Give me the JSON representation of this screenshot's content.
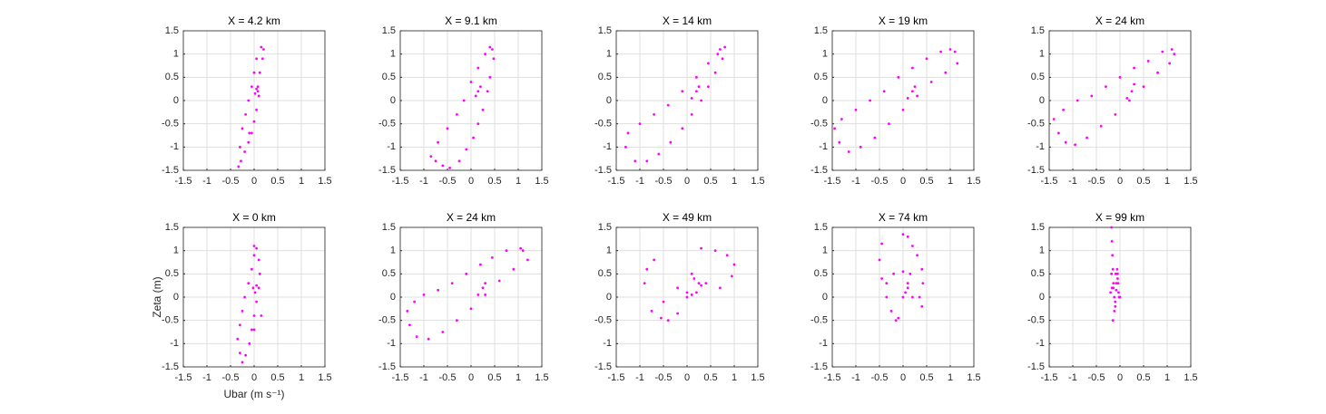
{
  "chart_data": [
    {
      "type": "scatter",
      "title": "X = 4.2 km",
      "color": "#ff00ff",
      "grid": true,
      "xlim": [
        -1.5,
        1.5
      ],
      "ylim": [
        -1.5,
        1.5
      ],
      "xticks": [
        -1.5,
        -1,
        -0.5,
        0,
        0.5,
        1,
        1.5
      ],
      "yticks": [
        -1.5,
        -1,
        -0.5,
        0,
        0.5,
        1,
        1.5
      ],
      "x": [
        0.15,
        0.2,
        0.18,
        0.12,
        0.08,
        0.1,
        0.05,
        0,
        -0.05,
        -0.12,
        -0.2,
        -0.28,
        -0.33,
        -0.3,
        -0.25,
        -0.18,
        -0.12,
        -0.05,
        0,
        0.05,
        0.05,
        0.02,
        0.08,
        -0.1
      ],
      "values": [
        1.15,
        1.1,
        0.9,
        0.6,
        0.3,
        0.1,
        -0.2,
        -0.45,
        -0.7,
        -0.9,
        -1.1,
        -1.3,
        -1.42,
        -1,
        -0.6,
        -0.3,
        0,
        0.3,
        0.6,
        0.9,
        0.25,
        0.15,
        0.2,
        -0.7
      ]
    },
    {
      "type": "scatter",
      "title": "X = 9.1 km",
      "color": "#ff00ff",
      "grid": true,
      "xlim": [
        -1.5,
        1.5
      ],
      "ylim": [
        -1.5,
        1.5
      ],
      "xticks": [
        -1.5,
        -1,
        -0.5,
        0,
        0.5,
        1,
        1.5
      ],
      "yticks": [
        -1.5,
        -1,
        -0.5,
        0,
        0.5,
        1,
        1.5
      ],
      "x": [
        0.4,
        0.45,
        0.48,
        0.4,
        0.35,
        0.25,
        0.15,
        0.05,
        -0.1,
        -0.25,
        -0.45,
        -0.6,
        -0.75,
        -0.85,
        -0.7,
        -0.5,
        -0.3,
        -0.15,
        0,
        0.15,
        0.3,
        0.1,
        0.15,
        0.2
      ],
      "values": [
        1.15,
        1.1,
        0.9,
        0.5,
        0.2,
        -0.2,
        -0.5,
        -0.8,
        -1.05,
        -1.3,
        -1.45,
        -1.4,
        -1.3,
        -1.2,
        -0.9,
        -0.6,
        -0.3,
        0,
        0.4,
        0.7,
        1,
        0.1,
        0.2,
        0.3
      ]
    },
    {
      "type": "scatter",
      "title": "X = 14 km",
      "color": "#ff00ff",
      "grid": true,
      "xlim": [
        -1.5,
        1.5
      ],
      "ylim": [
        -1.5,
        1.5
      ],
      "xticks": [
        -1.5,
        -1,
        -0.5,
        0,
        0.5,
        1,
        1.5
      ],
      "yticks": [
        -1.5,
        -1,
        -0.5,
        0,
        0.5,
        1,
        1.5
      ],
      "x": [
        0.7,
        0.8,
        0.75,
        0.6,
        0.45,
        0.3,
        0.1,
        -0.1,
        -0.35,
        -0.6,
        -0.85,
        -1.1,
        -1.3,
        -1.25,
        -1,
        -0.7,
        -0.4,
        -0.1,
        0.2,
        0.45,
        0.65,
        0.1,
        0.2,
        0.25
      ],
      "values": [
        1.1,
        1.15,
        0.9,
        0.6,
        0.3,
        0,
        -0.3,
        -0.6,
        -0.9,
        -1.15,
        -1.3,
        -1.3,
        -1,
        -0.7,
        -0.5,
        -0.3,
        -0.1,
        0.2,
        0.5,
        0.8,
        1,
        0.05,
        0.2,
        0.3
      ]
    },
    {
      "type": "scatter",
      "title": "X = 19 km",
      "color": "#ff00ff",
      "grid": true,
      "xlim": [
        -1.5,
        1.5
      ],
      "ylim": [
        -1.5,
        1.5
      ],
      "xticks": [
        -1.5,
        -1,
        -0.5,
        0,
        0.5,
        1,
        1.5
      ],
      "yticks": [
        -1.5,
        -1,
        -0.5,
        0,
        0.5,
        1,
        1.5
      ],
      "x": [
        1,
        1.1,
        1.15,
        0.9,
        0.6,
        0.3,
        0,
        -0.3,
        -0.6,
        -0.9,
        -1.15,
        -1.35,
        -1.45,
        -1.3,
        -1,
        -0.7,
        -0.4,
        -0.1,
        0.2,
        0.5,
        0.8,
        0.1,
        0.2,
        0.25
      ],
      "values": [
        1.1,
        1.05,
        0.8,
        0.6,
        0.4,
        0.1,
        -0.2,
        -0.5,
        -0.8,
        -1,
        -1.1,
        -0.9,
        -0.6,
        -0.4,
        -0.2,
        0,
        0.2,
        0.5,
        0.7,
        0.9,
        1.05,
        0.05,
        0.2,
        0.3
      ]
    },
    {
      "type": "scatter",
      "title": "X = 24 km",
      "color": "#ff00ff",
      "grid": true,
      "xlim": [
        -1.5,
        1.5
      ],
      "ylim": [
        -1.5,
        1.5
      ],
      "xticks": [
        -1.5,
        -1,
        -0.5,
        0,
        0.5,
        1,
        1.5
      ],
      "yticks": [
        -1.5,
        -1,
        -0.5,
        0,
        0.5,
        1,
        1.5
      ],
      "x": [
        1.1,
        1.15,
        1.05,
        0.8,
        0.5,
        0.2,
        -0.1,
        -0.4,
        -0.7,
        -0.95,
        -1.15,
        -1.3,
        -1.4,
        -1.2,
        -0.9,
        -0.6,
        -0.3,
        0,
        0.3,
        0.6,
        0.9,
        0.15,
        0.25,
        0.3
      ],
      "values": [
        1.1,
        1,
        0.8,
        0.6,
        0.3,
        0,
        -0.3,
        -0.55,
        -0.8,
        -0.95,
        -0.9,
        -0.7,
        -0.4,
        -0.2,
        0,
        0.1,
        0.3,
        0.5,
        0.7,
        0.85,
        1.05,
        0.05,
        0.2,
        0.35
      ]
    },
    {
      "type": "scatter",
      "title": "X = 0 km",
      "xlabel": "Ubar (m s⁻¹)",
      "ylabel": "Zeta (m)",
      "color": "#ff00ff",
      "grid": true,
      "xlim": [
        -1.5,
        1.5
      ],
      "ylim": [
        -1.5,
        1.5
      ],
      "xticks": [
        -1.5,
        -1,
        -0.5,
        0,
        0.5,
        1,
        1.5
      ],
      "yticks": [
        -1.5,
        -1,
        -0.5,
        0,
        0.5,
        1,
        1.5
      ],
      "x": [
        0,
        0.05,
        0.1,
        0.12,
        0.1,
        0.05,
        0,
        -0.05,
        -0.1,
        -0.18,
        -0.25,
        -0.3,
        -0.35,
        -0.3,
        -0.25,
        -0.2,
        -0.12,
        -0.05,
        0,
        -0.02,
        0.02,
        0.05,
        0,
        0.15
      ],
      "values": [
        1.1,
        1.05,
        0.8,
        0.5,
        0.2,
        -0.1,
        -0.4,
        -0.7,
        -1,
        -1.25,
        -1.4,
        -1.2,
        -0.9,
        -0.6,
        -0.3,
        0,
        0.3,
        0.6,
        0.9,
        0.2,
        0.1,
        0.25,
        -0.7,
        -0.4
      ]
    },
    {
      "type": "scatter",
      "title": "X = 24 km",
      "color": "#ff00ff",
      "grid": true,
      "xlim": [
        -1.5,
        1.5
      ],
      "ylim": [
        -1.5,
        1.5
      ],
      "xticks": [
        -1.5,
        -1,
        -0.5,
        0,
        0.5,
        1,
        1.5
      ],
      "yticks": [
        -1.5,
        -1,
        -0.5,
        0,
        0.5,
        1,
        1.5
      ],
      "x": [
        1.05,
        1.1,
        1.2,
        0.9,
        0.6,
        0.3,
        0,
        -0.3,
        -0.6,
        -0.9,
        -1.15,
        -1.3,
        -1.35,
        -1.2,
        -1,
        -0.7,
        -0.4,
        -0.1,
        0.2,
        0.45,
        0.75,
        0.15,
        0.25,
        0.3
      ],
      "values": [
        1.05,
        1,
        0.8,
        0.6,
        0.35,
        0.05,
        -0.25,
        -0.5,
        -0.75,
        -0.9,
        -0.85,
        -0.6,
        -0.3,
        -0.1,
        0.05,
        0.15,
        0.3,
        0.5,
        0.7,
        0.85,
        1,
        0.05,
        0.2,
        0.3
      ]
    },
    {
      "type": "scatter",
      "title": "X = 49 km",
      "color": "#ff00ff",
      "grid": true,
      "xlim": [
        -1.5,
        1.5
      ],
      "ylim": [
        -1.5,
        1.5
      ],
      "xticks": [
        -1.5,
        -1,
        -0.5,
        0,
        0.5,
        1,
        1.5
      ],
      "yticks": [
        -1.5,
        -1,
        -0.5,
        0,
        0.5,
        1,
        1.5
      ],
      "x": [
        0,
        0.3,
        0.6,
        0.85,
        1,
        0.95,
        0.7,
        0.4,
        0.1,
        -0.2,
        -0.5,
        -0.75,
        -0.9,
        -0.85,
        -0.7,
        -0.55,
        -0.4,
        -0.2,
        0,
        0.15,
        0.25,
        0.2,
        0.1,
        0.3
      ],
      "values": [
        0,
        1.05,
        1,
        0.9,
        0.7,
        0.45,
        0.2,
        0.3,
        0.5,
        0.2,
        -0.1,
        -0.3,
        0.3,
        0.6,
        0.8,
        -0.45,
        -0.5,
        -0.35,
        0.1,
        0.4,
        0.3,
        0.1,
        0.05,
        0.25
      ]
    },
    {
      "type": "scatter",
      "title": "X = 74 km",
      "color": "#ff00ff",
      "grid": true,
      "xlim": [
        -1.5,
        1.5
      ],
      "ylim": [
        -1.5,
        1.5
      ],
      "xticks": [
        -1.5,
        -1,
        -0.5,
        0,
        0.5,
        1,
        1.5
      ],
      "yticks": [
        -1.5,
        -1,
        -0.5,
        0,
        0.5,
        1,
        1.5
      ],
      "x": [
        0,
        0.1,
        0.2,
        0.3,
        0.4,
        0.42,
        0.35,
        0.2,
        0,
        -0.2,
        -0.35,
        -0.45,
        -0.5,
        -0.45,
        -0.35,
        -0.25,
        -0.15,
        0,
        0.1,
        0.15,
        0.1,
        0.05,
        -0.1,
        0.4
      ],
      "values": [
        1.35,
        1.3,
        1.1,
        0.9,
        0.6,
        0.3,
        0,
        0,
        0.55,
        0.5,
        0.3,
        1.15,
        0.8,
        0.4,
        0,
        -0.3,
        -0.5,
        0,
        0.3,
        0.5,
        0.2,
        0.1,
        -0.45,
        -0.2
      ]
    },
    {
      "type": "scatter",
      "title": "X = 99 km",
      "color": "#ff00ff",
      "grid": true,
      "xlim": [
        -1.5,
        1.5
      ],
      "ylim": [
        -1.5,
        1.5
      ],
      "xticks": [
        -1.5,
        -1,
        -0.5,
        0,
        0.5,
        1,
        1.5
      ],
      "yticks": [
        -1.5,
        -1,
        -0.5,
        0,
        0.5,
        1,
        1.5
      ],
      "x": [
        -0.18,
        -0.17,
        -0.16,
        -0.15,
        -0.14,
        -0.12,
        -0.1,
        -0.08,
        -0.06,
        -0.05,
        -0.04,
        -0.03,
        -0.02,
        0,
        -0.05,
        -0.08,
        -0.1,
        -0.12,
        -0.15,
        -0.17,
        -0.18,
        -0.2,
        -0.14,
        -0.09
      ],
      "values": [
        1.5,
        1.2,
        0.9,
        0.6,
        0.3,
        0,
        -0.2,
        0.3,
        0.6,
        0.5,
        0.3,
        0.1,
        0,
        0,
        0.4,
        0.15,
        -0.1,
        -0.3,
        -0.5,
        0.2,
        0.5,
        0.1,
        0.2,
        0.5
      ]
    }
  ]
}
